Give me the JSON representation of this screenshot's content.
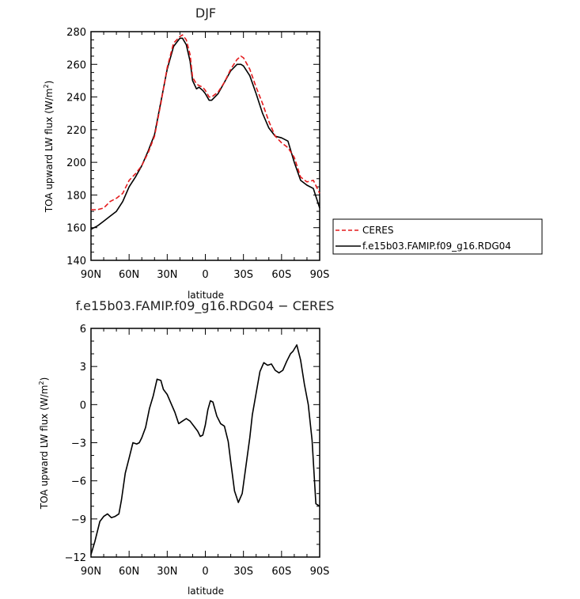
{
  "chart_data": [
    {
      "type": "line",
      "title": "DJF",
      "xlabel": "latitude",
      "ylabel": "TOA upward LW flux (W/m²)",
      "ylabel_main": "TOA upward LW flux (W/m",
      "ylabel_sup": "2",
      "ylabel_end": ")",
      "xlim": [
        90,
        -90
      ],
      "ylim": [
        140,
        280
      ],
      "x_ticks": [
        90,
        60,
        30,
        0,
        -30,
        -60,
        -90
      ],
      "x_tick_labels": [
        "90N",
        "60N",
        "30N",
        "0",
        "30S",
        "60S",
        "90S"
      ],
      "y_ticks": [
        140,
        160,
        180,
        200,
        220,
        240,
        260,
        280
      ],
      "y_tick_labels": [
        "140",
        "160",
        "180",
        "200",
        "220",
        "240",
        "260",
        "280"
      ],
      "legend_position": "right",
      "grid": false,
      "series": [
        {
          "name": "CERES",
          "color": "#e41a1c",
          "style": "dashed",
          "x": [
            90,
            85,
            80,
            75,
            70,
            65,
            60,
            55,
            50,
            45,
            40,
            35,
            30,
            25,
            20,
            18,
            15,
            12,
            10,
            7,
            5,
            2,
            0,
            -3,
            -5,
            -10,
            -15,
            -20,
            -25,
            -28,
            -30,
            -35,
            -40,
            -45,
            -50,
            -55,
            -60,
            -65,
            -70,
            -75,
            -80,
            -85,
            -90
          ],
          "y": [
            171,
            171,
            172,
            176,
            178,
            181,
            189,
            193,
            198,
            206,
            216,
            236,
            258,
            273,
            277,
            278,
            275,
            266,
            252,
            248,
            247,
            246,
            244,
            240,
            240,
            243,
            249,
            257,
            263,
            265,
            264,
            257,
            246,
            236,
            225,
            216,
            212,
            209,
            203,
            191,
            188,
            189,
            181
          ]
        },
        {
          "name": "f.e15b03.FAMIP.f09_g16.RDG04",
          "color": "#000000",
          "style": "solid",
          "x": [
            90,
            85,
            80,
            75,
            70,
            65,
            60,
            55,
            50,
            45,
            40,
            35,
            30,
            25,
            20,
            18,
            15,
            12,
            10,
            7,
            5,
            2,
            0,
            -3,
            -5,
            -10,
            -15,
            -20,
            -25,
            -28,
            -30,
            -35,
            -40,
            -45,
            -50,
            -55,
            -60,
            -65,
            -70,
            -75,
            -80,
            -85,
            -90
          ],
          "y": [
            159,
            161,
            164,
            167,
            170,
            176,
            185,
            191,
            198,
            207,
            217,
            237,
            257,
            271,
            276,
            276,
            272,
            262,
            250,
            245,
            246,
            244,
            242,
            238,
            238,
            242,
            249,
            256,
            260,
            260,
            259,
            253,
            242,
            230,
            221,
            216,
            215,
            213,
            200,
            189,
            186,
            184,
            172
          ]
        }
      ]
    },
    {
      "type": "line",
      "title": "f.e15b03.FAMIP.f09_g16.RDG04 − CERES",
      "xlabel": "latitude",
      "ylabel": "TOA upward LW flux (W/m²)",
      "ylabel_main": "TOA upward LW flux (W/m",
      "ylabel_sup": "2",
      "ylabel_end": ")",
      "xlim": [
        90,
        -90
      ],
      "ylim": [
        -12,
        6
      ],
      "x_ticks": [
        90,
        60,
        30,
        0,
        -30,
        -60,
        -90
      ],
      "x_tick_labels": [
        "90N",
        "60N",
        "30N",
        "0",
        "30S",
        "60S",
        "90S"
      ],
      "y_ticks": [
        -12,
        -9,
        -6,
        -3,
        0,
        3,
        6
      ],
      "y_tick_labels": [
        "−12",
        "−9",
        "−6",
        "−3",
        "0",
        "3",
        "6"
      ],
      "grid": false,
      "series": [
        {
          "color": "#000000",
          "style": "solid",
          "x": [
            90,
            87,
            83,
            80,
            77,
            74,
            71,
            68,
            66,
            63,
            60,
            57,
            54,
            52,
            50,
            47,
            44,
            41,
            38,
            35,
            33,
            30,
            27,
            24,
            21,
            18,
            15,
            12,
            9,
            6,
            4,
            2,
            0,
            -2,
            -4,
            -6,
            -9,
            -12,
            -15,
            -18,
            -20,
            -23,
            -26,
            -29,
            -32,
            -35,
            -37,
            -40,
            -43,
            -46,
            -49,
            -52,
            -55,
            -58,
            -61,
            -64,
            -67,
            -69,
            -72,
            -75,
            -78,
            -81,
            -84,
            -87,
            -90
          ],
          "y": [
            -11.8,
            -10.8,
            -9.2,
            -8.8,
            -8.6,
            -8.9,
            -8.8,
            -8.6,
            -7.5,
            -5.4,
            -4.2,
            -3.0,
            -3.1,
            -3.0,
            -2.6,
            -1.8,
            -0.3,
            0.7,
            2.0,
            1.9,
            1.2,
            0.8,
            0.1,
            -0.6,
            -1.5,
            -1.3,
            -1.1,
            -1.3,
            -1.7,
            -2.1,
            -2.5,
            -2.4,
            -1.6,
            -0.4,
            0.3,
            0.2,
            -0.9,
            -1.5,
            -1.7,
            -2.9,
            -4.5,
            -6.8,
            -7.7,
            -7.0,
            -4.8,
            -2.6,
            -0.8,
            0.9,
            2.6,
            3.3,
            3.1,
            3.2,
            2.7,
            2.5,
            2.7,
            3.4,
            4.0,
            4.2,
            4.7,
            3.5,
            1.6,
            0.0,
            -2.8,
            -7.8,
            -8.0
          ]
        }
      ]
    }
  ]
}
